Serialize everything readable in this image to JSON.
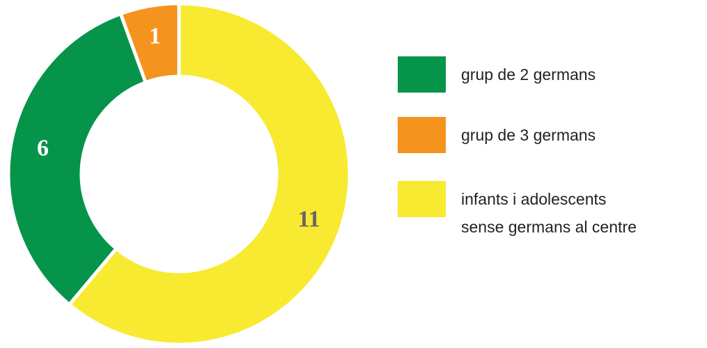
{
  "chart_data": {
    "type": "donut",
    "series": [
      {
        "name": "grup de 2 germans",
        "color": "#05944a",
        "label_color": "#ffffff",
        "values": [
          6
        ]
      },
      {
        "name": "grup de 3 germans",
        "color": "#f5931f",
        "label_color": "#ffffff",
        "values": [
          1
        ]
      },
      {
        "name": "infants i adolescents\nsense germans al centre",
        "color": "#f7ea31",
        "label_color": "#666666",
        "values": [
          11
        ]
      }
    ],
    "legend": "right"
  }
}
